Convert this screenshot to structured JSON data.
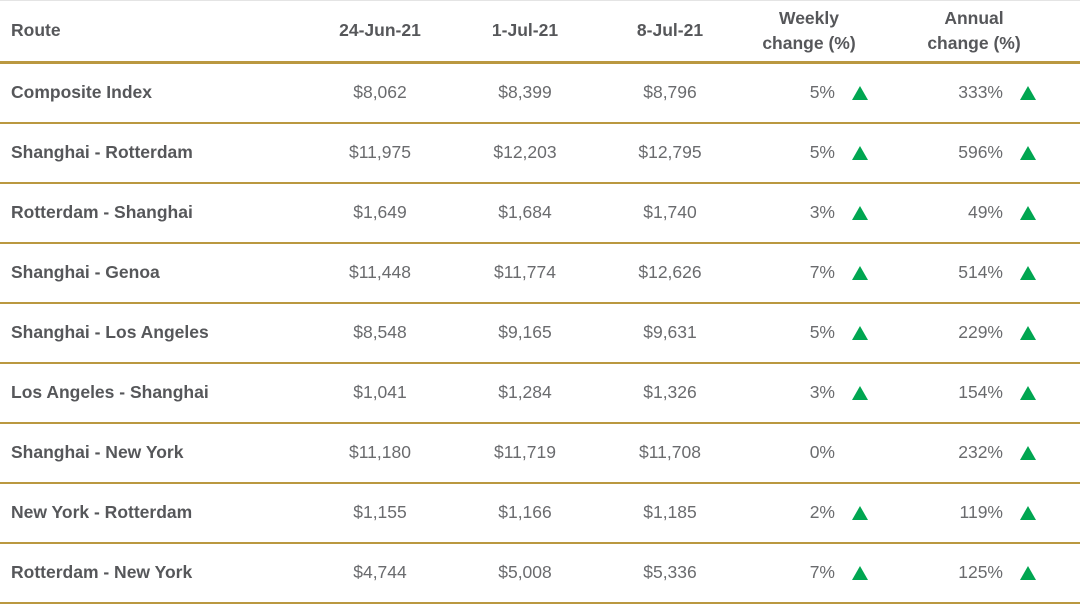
{
  "colors": {
    "accent_gold": "#ba9840",
    "arrow_green": "#00a651",
    "header_text": "#56575a",
    "value_text": "#6a6b6e"
  },
  "icons": {
    "up_triangle": "up-triangle-icon"
  },
  "table": {
    "headers": [
      {
        "l1": "Route",
        "l2": ""
      },
      {
        "l1": "24-Jun-21",
        "l2": ""
      },
      {
        "l1": "1-Jul-21",
        "l2": ""
      },
      {
        "l1": "8-Jul-21",
        "l2": ""
      },
      {
        "l1": "Weekly",
        "l2": "change (%)"
      },
      {
        "l1": "Annual",
        "l2": "change (%)"
      }
    ],
    "rows": [
      {
        "route": "Composite Index",
        "d1": "$8,062",
        "d2": "$8,399",
        "d3": "$8,796",
        "weekly": "5%",
        "weekly_dir": "up",
        "annual": "333%",
        "annual_dir": "up"
      },
      {
        "route": "Shanghai - Rotterdam",
        "d1": "$11,975",
        "d2": "$12,203",
        "d3": "$12,795",
        "weekly": "5%",
        "weekly_dir": "up",
        "annual": "596%",
        "annual_dir": "up"
      },
      {
        "route": "Rotterdam - Shanghai",
        "d1": "$1,649",
        "d2": "$1,684",
        "d3": "$1,740",
        "weekly": "3%",
        "weekly_dir": "up",
        "annual": "49%",
        "annual_dir": "up"
      },
      {
        "route": "Shanghai - Genoa",
        "d1": "$11,448",
        "d2": "$11,774",
        "d3": "$12,626",
        "weekly": "7%",
        "weekly_dir": "up",
        "annual": "514%",
        "annual_dir": "up"
      },
      {
        "route": "Shanghai - Los Angeles",
        "d1": "$8,548",
        "d2": "$9,165",
        "d3": "$9,631",
        "weekly": "5%",
        "weekly_dir": "up",
        "annual": "229%",
        "annual_dir": "up"
      },
      {
        "route": "Los Angeles - Shanghai",
        "d1": "$1,041",
        "d2": "$1,284",
        "d3": "$1,326",
        "weekly": "3%",
        "weekly_dir": "up",
        "annual": "154%",
        "annual_dir": "up"
      },
      {
        "route": "Shanghai - New York",
        "d1": "$11,180",
        "d2": "$11,719",
        "d3": "$11,708",
        "weekly": "0%",
        "weekly_dir": "none",
        "annual": "232%",
        "annual_dir": "up"
      },
      {
        "route": "New York - Rotterdam",
        "d1": "$1,155",
        "d2": "$1,166",
        "d3": "$1,185",
        "weekly": "2%",
        "weekly_dir": "up",
        "annual": "119%",
        "annual_dir": "up"
      },
      {
        "route": "Rotterdam - New York",
        "d1": "$4,744",
        "d2": "$5,008",
        "d3": "$5,336",
        "weekly": "7%",
        "weekly_dir": "up",
        "annual": "125%",
        "annual_dir": "up"
      }
    ]
  },
  "chart_data": {
    "type": "table",
    "title": "",
    "columns": [
      "Route",
      "24-Jun-21",
      "1-Jul-21",
      "8-Jul-21",
      "Weekly change (%)",
      "Annual change (%)"
    ],
    "rows": [
      {
        "route": "Composite Index",
        "rates_usd": [
          8062,
          8399,
          8796
        ],
        "weekly_change_pct": 5,
        "weekly_direction": "up",
        "annual_change_pct": 333,
        "annual_direction": "up"
      },
      {
        "route": "Shanghai - Rotterdam",
        "rates_usd": [
          11975,
          12203,
          12795
        ],
        "weekly_change_pct": 5,
        "weekly_direction": "up",
        "annual_change_pct": 596,
        "annual_direction": "up"
      },
      {
        "route": "Rotterdam - Shanghai",
        "rates_usd": [
          1649,
          1684,
          1740
        ],
        "weekly_change_pct": 3,
        "weekly_direction": "up",
        "annual_change_pct": 49,
        "annual_direction": "up"
      },
      {
        "route": "Shanghai - Genoa",
        "rates_usd": [
          11448,
          11774,
          12626
        ],
        "weekly_change_pct": 7,
        "weekly_direction": "up",
        "annual_change_pct": 514,
        "annual_direction": "up"
      },
      {
        "route": "Shanghai - Los Angeles",
        "rates_usd": [
          8548,
          9165,
          9631
        ],
        "weekly_change_pct": 5,
        "weekly_direction": "up",
        "annual_change_pct": 229,
        "annual_direction": "up"
      },
      {
        "route": "Los Angeles - Shanghai",
        "rates_usd": [
          1041,
          1284,
          1326
        ],
        "weekly_change_pct": 3,
        "weekly_direction": "up",
        "annual_change_pct": 154,
        "annual_direction": "up"
      },
      {
        "route": "Shanghai - New York",
        "rates_usd": [
          11180,
          11719,
          11708
        ],
        "weekly_change_pct": 0,
        "weekly_direction": "flat",
        "annual_change_pct": 232,
        "annual_direction": "up"
      },
      {
        "route": "New York - Rotterdam",
        "rates_usd": [
          1155,
          1166,
          1185
        ],
        "weekly_change_pct": 2,
        "weekly_direction": "up",
        "annual_change_pct": 119,
        "annual_direction": "up"
      },
      {
        "route": "Rotterdam - New York",
        "rates_usd": [
          4744,
          5008,
          5336
        ],
        "weekly_change_pct": 7,
        "weekly_direction": "up",
        "annual_change_pct": 125,
        "annual_direction": "up"
      }
    ]
  }
}
